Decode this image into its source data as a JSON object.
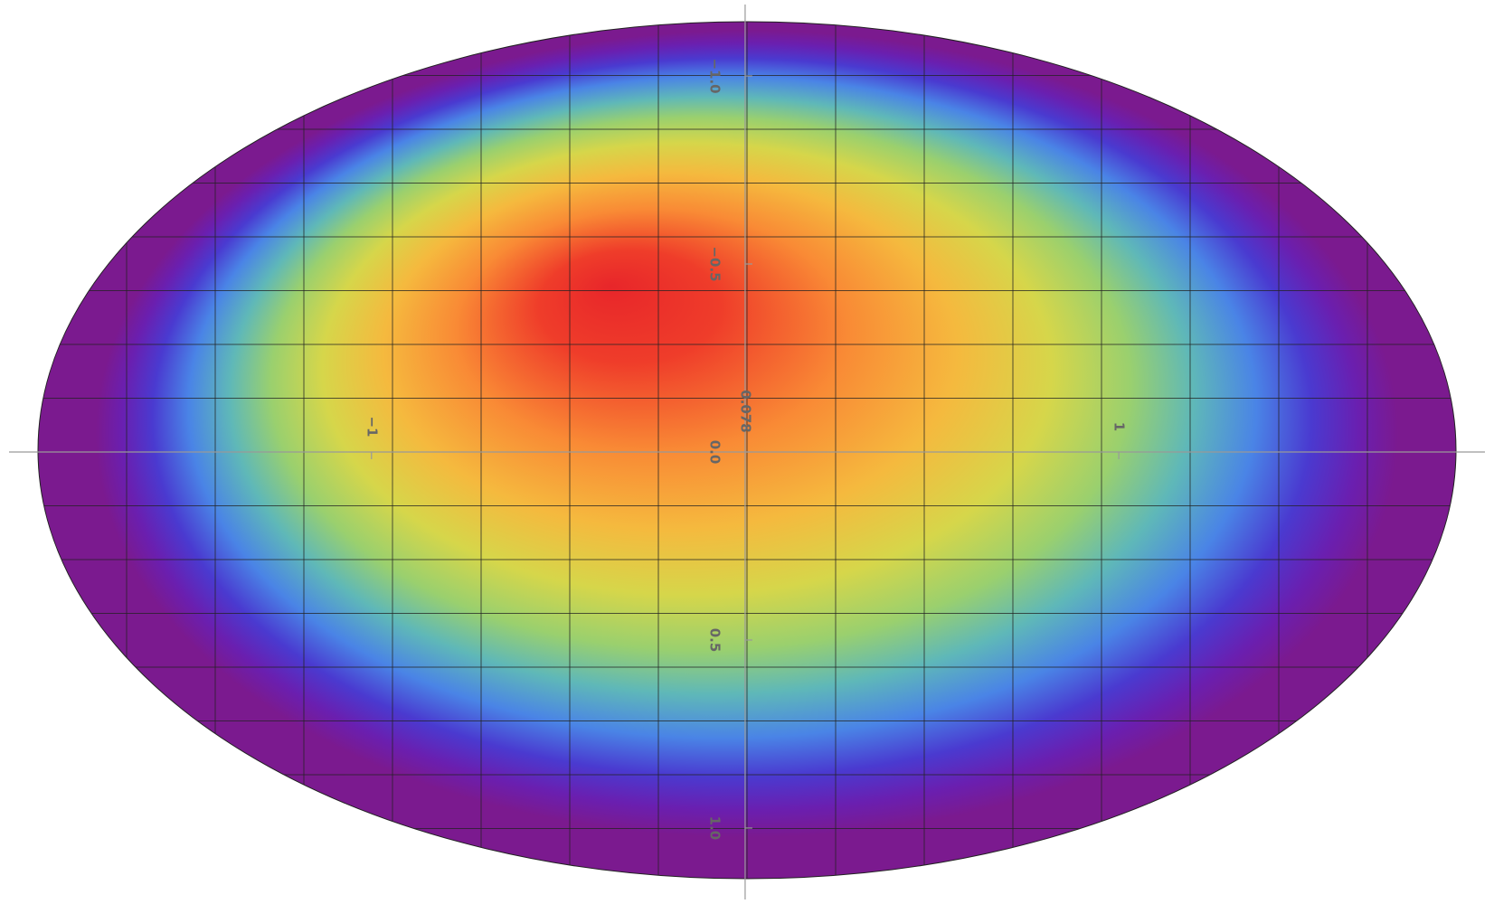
{
  "chart_data": {
    "type": "density",
    "annotation": "0.078",
    "xlim": [
      -1.97,
      1.98
    ],
    "ylim": [
      -1.19,
      1.19
    ],
    "y_reversed": true,
    "xticks": [
      {
        "value": -1,
        "label": "−1"
      },
      1
    ],
    "yticks": [
      {
        "value": -1,
        "label": "−1.0"
      },
      {
        "value": -0.5,
        "label": "−0.5"
      },
      {
        "value": 0,
        "label": "0.0"
      },
      0.5,
      {
        "value": 1,
        "label": "1.0"
      }
    ],
    "grid": true
  }
}
